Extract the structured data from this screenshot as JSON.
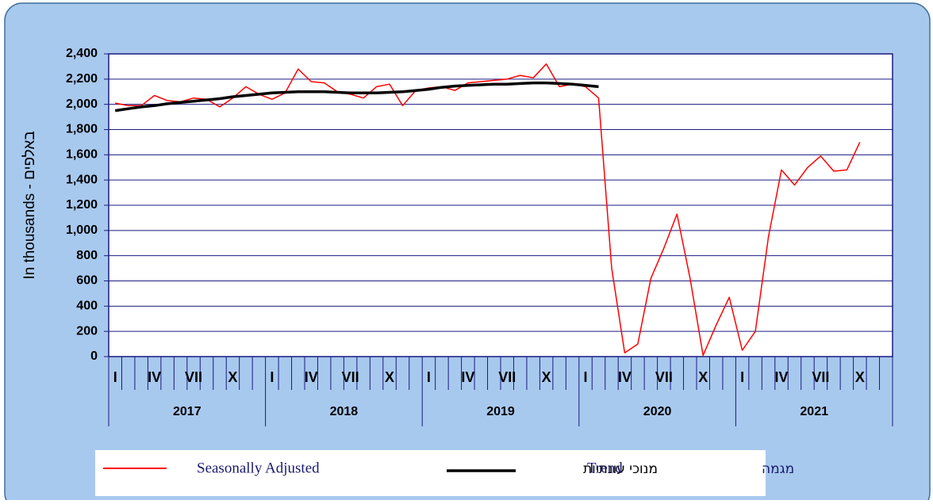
{
  "chart_data": {
    "type": "line",
    "y_label": "In thousands - באלפים",
    "categories": [
      "I",
      null,
      null,
      "IV",
      null,
      null,
      "VII",
      null,
      null,
      "X",
      null,
      null,
      "I",
      null,
      null,
      "IV",
      null,
      null,
      "VII",
      null,
      null,
      "X",
      null,
      null,
      "I",
      null,
      null,
      "IV",
      null,
      null,
      "VII",
      null,
      null,
      "X",
      null,
      null,
      "I",
      null,
      null,
      "IV",
      null,
      null,
      "VII",
      null,
      null,
      "X",
      null,
      null,
      "I",
      null,
      null,
      "IV",
      null,
      null,
      "VII",
      null,
      null,
      "X",
      null,
      null
    ],
    "years": [
      "2017",
      "2018",
      "2019",
      "2020",
      "2021"
    ],
    "series": [
      {
        "name": "Seasonally Adjusted",
        "color": "#ff0000",
        "width": 1.5,
        "values": [
          2010,
          1990,
          1990,
          2070,
          2030,
          2020,
          2050,
          2040,
          1980,
          2050,
          2140,
          2080,
          2040,
          2090,
          2280,
          2180,
          2170,
          2100,
          2080,
          2050,
          2140,
          2160,
          1990,
          2110,
          2130,
          2140,
          2110,
          2170,
          2180,
          2190,
          2200,
          2230,
          2210,
          2320,
          2140,
          2160,
          2140,
          2050,
          700,
          30,
          100,
          620,
          860,
          1130,
          620,
          10,
          250,
          470,
          50,
          200,
          950,
          1480,
          1360,
          1500,
          1590,
          1470,
          1480,
          1700,
          null,
          null
        ]
      },
      {
        "name": "Trend",
        "color": "#000000",
        "width": 3.5,
        "values": [
          1950,
          1965,
          1980,
          1990,
          2005,
          2015,
          2025,
          2035,
          2045,
          2060,
          2070,
          2080,
          2090,
          2095,
          2100,
          2100,
          2100,
          2095,
          2090,
          2090,
          2090,
          2095,
          2100,
          2110,
          2120,
          2135,
          2145,
          2150,
          2155,
          2160,
          2160,
          2165,
          2170,
          2170,
          2165,
          2160,
          2150,
          2140,
          null,
          null,
          null,
          null,
          null,
          null,
          null,
          null,
          null,
          null,
          null,
          null,
          null,
          null,
          null,
          null,
          null,
          null,
          null,
          null,
          null,
          null
        ]
      }
    ],
    "legend_extra": [
      "מנוכי עונתיות",
      "מגמה"
    ],
    "ylim": [
      0,
      2400
    ],
    "yticks": [
      0,
      200,
      400,
      600,
      800,
      {
        "value": 1000,
        "label": "1,000"
      },
      {
        "value": 1200,
        "label": "1,200"
      },
      {
        "value": 1400,
        "label": "1,400"
      },
      {
        "value": 1600,
        "label": "1,600"
      },
      {
        "value": 1800,
        "label": "1,800"
      },
      {
        "value": 2000,
        "label": "2,000"
      },
      {
        "value": 2200,
        "label": "2,200"
      },
      {
        "value": 2400,
        "label": "2,400"
      }
    ],
    "grid": true
  }
}
